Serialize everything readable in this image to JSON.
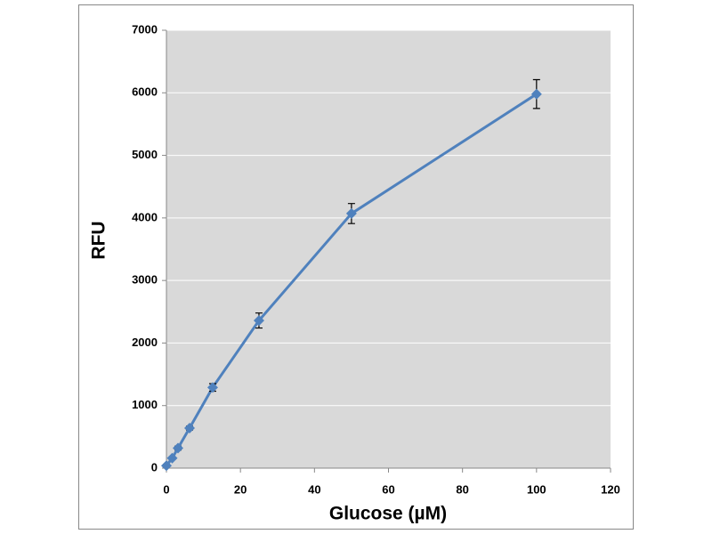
{
  "chart_data": {
    "type": "line",
    "xlabel": "Glucose (µM)",
    "ylabel": "RFU",
    "x": [
      0,
      1.5625,
      3.125,
      6.25,
      12.5,
      25,
      50,
      100
    ],
    "series": [
      {
        "name": "RFU",
        "color": "#4f81bd",
        "values": [
          40,
          160,
          320,
          640,
          1290,
          2360,
          4070,
          5980
        ],
        "errors": [
          20,
          20,
          30,
          30,
          60,
          120,
          160,
          230
        ]
      }
    ],
    "xlim": [
      0,
      120
    ],
    "xticks": [
      0,
      20,
      40,
      60,
      80,
      100,
      120
    ],
    "ylim": [
      0,
      7000
    ],
    "yticks": [
      0,
      1000,
      2000,
      3000,
      4000,
      5000,
      6000,
      7000
    ],
    "grid": true
  }
}
